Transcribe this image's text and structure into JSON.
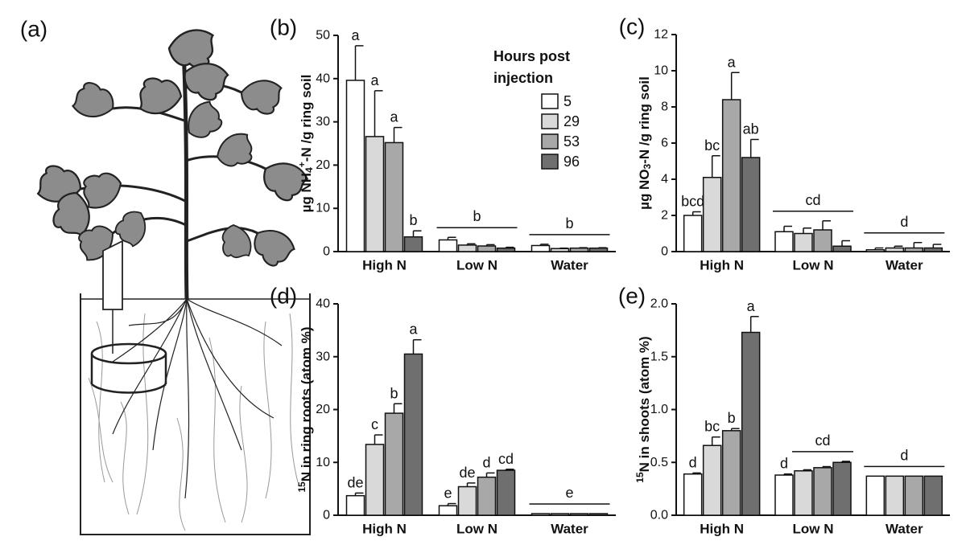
{
  "figure_label": "(a)",
  "chart_data": [
    {
      "type": "bar",
      "panel": "(b)",
      "ylabel": [
        {
          "text": "µg NH"
        },
        {
          "sub": "4"
        },
        {
          "sup": "+"
        },
        {
          "text": "-N /g ring soil"
        }
      ],
      "categories": [
        "High N",
        "Low N",
        "Water"
      ],
      "legend_title": [
        "Hours post",
        "injection"
      ],
      "series": [
        {
          "name": "5",
          "color": "#ffffff",
          "values": [
            39.6,
            2.7,
            1.4
          ],
          "errors": [
            8,
            0.6,
            0.3
          ]
        },
        {
          "name": "29",
          "color": "#d9d9d9",
          "values": [
            26.6,
            1.5,
            0.7
          ],
          "errors": [
            10.6,
            0.3,
            0.1
          ]
        },
        {
          "name": "53",
          "color": "#a8a8a8",
          "values": [
            25.2,
            1.3,
            0.8
          ],
          "errors": [
            3.5,
            0.3,
            0.1
          ]
        },
        {
          "name": "96",
          "color": "#6f6f6f",
          "values": [
            3.4,
            0.8,
            0.8
          ],
          "errors": [
            1.4,
            0.2,
            0.1
          ]
        }
      ],
      "ylim": [
        0,
        50
      ],
      "yticks": [
        0,
        10,
        20,
        30,
        40,
        50
      ],
      "letters": [
        {
          "bars": [
            "a",
            "a",
            "a",
            "b"
          ]
        },
        {
          "bars": [
            null,
            null,
            null,
            null
          ],
          "group": "b"
        },
        {
          "bars": [
            null,
            null,
            null,
            null
          ],
          "group": "b"
        }
      ]
    },
    {
      "type": "bar",
      "panel": "(c)",
      "ylabel": [
        {
          "text": "µg NO"
        },
        {
          "sub": "3"
        },
        {
          "text": "-N /g ring soil"
        }
      ],
      "categories": [
        "High N",
        "Low N",
        "Water"
      ],
      "series": [
        {
          "color": "#ffffff",
          "values": [
            2.0,
            1.1,
            0.1
          ],
          "errors": [
            0.2,
            0.3,
            0.1
          ]
        },
        {
          "color": "#d9d9d9",
          "values": [
            4.1,
            1.0,
            0.2
          ],
          "errors": [
            1.2,
            0.3,
            0.1
          ]
        },
        {
          "color": "#a8a8a8",
          "values": [
            8.4,
            1.2,
            0.2
          ],
          "errors": [
            1.5,
            0.5,
            0.3
          ]
        },
        {
          "color": "#6f6f6f",
          "values": [
            5.2,
            0.3,
            0.2
          ],
          "errors": [
            1.0,
            0.3,
            0.2
          ]
        }
      ],
      "ylim": [
        0,
        12
      ],
      "yticks": [
        0,
        2,
        4,
        6,
        8,
        10,
        12
      ],
      "letters": [
        {
          "bars": [
            "bcd",
            "bc",
            "a",
            "ab"
          ]
        },
        {
          "bars": [
            null,
            null,
            null,
            null
          ],
          "group": "cd"
        },
        {
          "bars": [
            null,
            null,
            null,
            null
          ],
          "group": "d"
        }
      ]
    },
    {
      "type": "bar",
      "panel": "(d)",
      "ylabel": [
        {
          "sup": "15"
        },
        {
          "text": "N in ring roots (atom %)"
        }
      ],
      "categories": [
        "High N",
        "Low N",
        "Water"
      ],
      "series": [
        {
          "color": "#ffffff",
          "values": [
            3.7,
            1.8,
            0.3
          ],
          "errors": [
            0.5,
            0.4,
            0
          ]
        },
        {
          "color": "#d9d9d9",
          "values": [
            13.4,
            5.4,
            0.3
          ],
          "errors": [
            1.8,
            0.7,
            0
          ]
        },
        {
          "color": "#a8a8a8",
          "values": [
            19.3,
            7.2,
            0.3
          ],
          "errors": [
            1.8,
            0.8,
            0
          ]
        },
        {
          "color": "#6f6f6f",
          "values": [
            30.5,
            8.5,
            0.3
          ],
          "errors": [
            2.7,
            0.2,
            0
          ]
        }
      ],
      "ylim": [
        0,
        40
      ],
      "yticks": [
        0,
        10,
        20,
        30,
        40
      ],
      "letters": [
        {
          "bars": [
            "de",
            "c",
            "b",
            "a"
          ]
        },
        {
          "bars": [
            "e",
            "de",
            "d",
            "cd"
          ]
        },
        {
          "bars": [
            null,
            null,
            null,
            null
          ],
          "group": "e"
        }
      ]
    },
    {
      "type": "bar",
      "panel": "(e)",
      "ylabel": [
        {
          "sup": "15"
        },
        {
          "text": "N in shoots (atom %)"
        }
      ],
      "categories": [
        "High N",
        "Low N",
        "Water"
      ],
      "series": [
        {
          "color": "#ffffff",
          "values": [
            0.39,
            0.38,
            0.37
          ],
          "errors": [
            0.01,
            0.01,
            0
          ]
        },
        {
          "color": "#d9d9d9",
          "values": [
            0.66,
            0.42,
            0.37
          ],
          "errors": [
            0.08,
            0.01,
            0
          ]
        },
        {
          "color": "#a8a8a8",
          "values": [
            0.8,
            0.45,
            0.37
          ],
          "errors": [
            0.02,
            0.01,
            0
          ]
        },
        {
          "color": "#6f6f6f",
          "values": [
            1.73,
            0.5,
            0.37
          ],
          "errors": [
            0.15,
            0.01,
            0
          ]
        }
      ],
      "ylim": [
        0,
        2
      ],
      "yticks": [
        {
          "value": 0,
          "label": "0.0"
        },
        0.5,
        {
          "value": 1,
          "label": "1.0"
        },
        1.5,
        {
          "value": 2,
          "label": "2.0"
        }
      ],
      "letters": [
        {
          "bars": [
            "d",
            "bc",
            "b",
            "a"
          ]
        },
        {
          "bars": [
            "d",
            null,
            null,
            null
          ],
          "group": "cd"
        },
        {
          "bars": [
            null,
            null,
            null,
            null
          ],
          "group": "d"
        }
      ]
    }
  ]
}
